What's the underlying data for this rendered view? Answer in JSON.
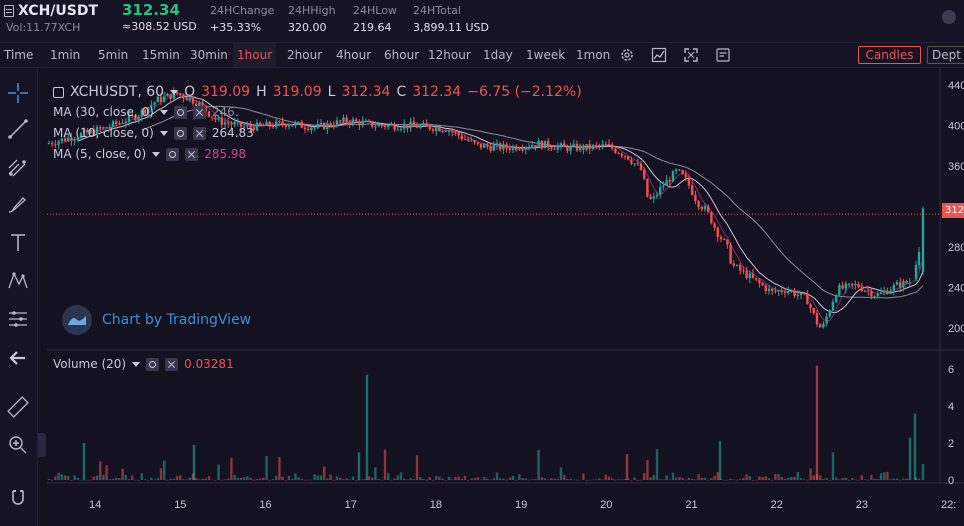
{
  "header": {
    "pair": "XCH/USDT",
    "volume": "Vol:11.77XCH",
    "last_price": "312.34",
    "approx_usd": "≈308.52 USD",
    "change_label": "24HChange",
    "change_value": "+35.33%",
    "high_label": "24HHigh",
    "high_value": "320.00",
    "low_label": "24HLow",
    "low_value": "219.64",
    "total_label": "24HTotal",
    "total_value": "3,899.11 USD",
    "colors": {
      "up": "#26a69a",
      "down": "#ef5350",
      "last": "#26c281"
    }
  },
  "toolbar": {
    "time_label": "Time",
    "intervals": [
      "1min",
      "5min",
      "15min",
      "30min",
      "1hour",
      "2hour",
      "4hour",
      "6hour",
      "12hour",
      "1day",
      "1week",
      "1mon"
    ],
    "active_interval": "1hour",
    "icons": [
      "gear-icon",
      "chart-icon",
      "fullscreen-icon",
      "notes-icon"
    ],
    "candles_label": "Candles",
    "depth_label": "Dept"
  },
  "left_tools": [
    "crosshair-icon",
    "trendline-icon",
    "pitchfork-icon",
    "brush-icon",
    "text-icon",
    "pattern-icon",
    "measure-icon",
    "back-arrow-icon",
    "ruler-icon",
    "zoom-icon",
    "magnet-icon"
  ],
  "legend": {
    "symbol": "XCHUSDT, 60",
    "o_label": "O",
    "o_value": "319.09",
    "h_label": "H",
    "h_value": "319.09",
    "l_label": "L",
    "l_value": "312.34",
    "c_label": "C",
    "c_value": "312.34",
    "change": "−6.75 (−2.12%)",
    "ma30_name": "MA (30, close, 0)",
    "ma30_value": "246.",
    "ma10_name": "MA (10, close, 0)",
    "ma10_value": "264.83",
    "ma5_name": "MA (5, close, 0)",
    "ma5_value": "285.98",
    "volume_name": "Volume (20)",
    "volume_value": "0.03281",
    "ma_colors": {
      "ma30": "#8d8d9a",
      "ma10": "#c9c9d6",
      "ma5": "#d0409a"
    }
  },
  "watermark": "Chart by TradingView",
  "price_tag": "312",
  "chart_data": {
    "type": "candlestick",
    "x_ticks": [
      "14",
      "15",
      "16",
      "17",
      "18",
      "19",
      "20",
      "21",
      "22",
      "23",
      "22:"
    ],
    "price_ticks": [
      "440",
      "400",
      "360",
      "320",
      "280",
      "240",
      "200"
    ],
    "price_range": [
      180,
      445
    ],
    "volume_ticks": [
      "6",
      "4",
      "2",
      "0"
    ],
    "volume_range": [
      0,
      6.5
    ],
    "anchors": [
      [
        0,
        382
      ],
      [
        30,
        390
      ],
      [
        60,
        398
      ],
      [
        90,
        410
      ],
      [
        110,
        425
      ],
      [
        130,
        432
      ],
      [
        150,
        423
      ],
      [
        170,
        405
      ],
      [
        200,
        398
      ],
      [
        240,
        402
      ],
      [
        270,
        398
      ],
      [
        300,
        405
      ],
      [
        330,
        400
      ],
      [
        360,
        400
      ],
      [
        400,
        397
      ],
      [
        430,
        380
      ],
      [
        460,
        378
      ],
      [
        490,
        382
      ],
      [
        520,
        378
      ],
      [
        540,
        378
      ],
      [
        560,
        380
      ],
      [
        580,
        370
      ],
      [
        595,
        355
      ],
      [
        600,
        330
      ],
      [
        605,
        325
      ],
      [
        615,
        340
      ],
      [
        630,
        355
      ],
      [
        640,
        345
      ],
      [
        650,
        325
      ],
      [
        660,
        315
      ],
      [
        670,
        295
      ],
      [
        680,
        280
      ],
      [
        685,
        262
      ],
      [
        700,
        252
      ],
      [
        710,
        245
      ],
      [
        725,
        235
      ],
      [
        740,
        238
      ],
      [
        760,
        228
      ],
      [
        770,
        205
      ],
      [
        775,
        198
      ],
      [
        780,
        212
      ],
      [
        790,
        238
      ],
      [
        810,
        242
      ],
      [
        830,
        232
      ],
      [
        850,
        242
      ],
      [
        865,
        246
      ],
      [
        872,
        252
      ],
      [
        876,
        265
      ],
      [
        880,
        320
      ]
    ],
    "last_close": 312.34
  }
}
